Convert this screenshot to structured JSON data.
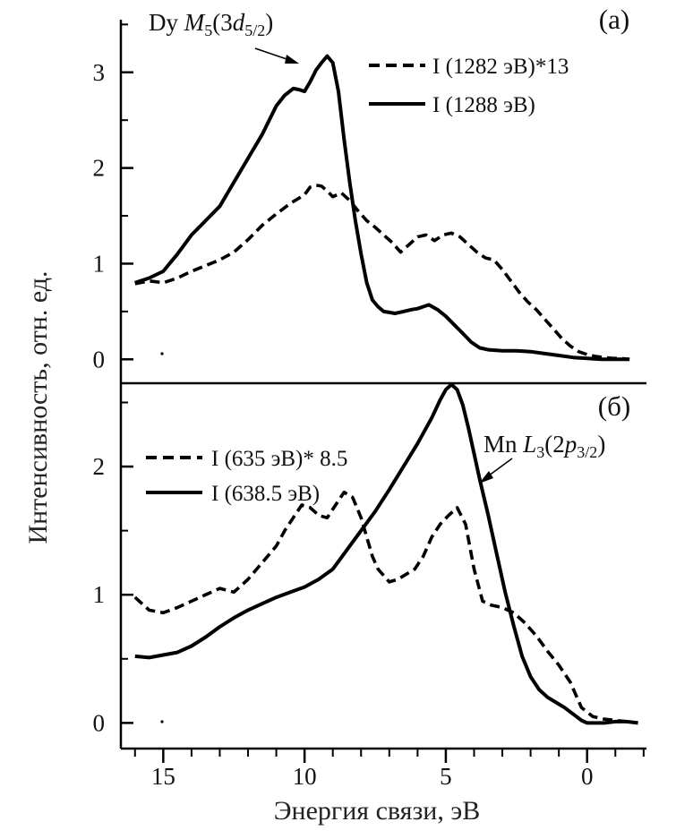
{
  "chart_data": [
    {
      "panel": "a",
      "type": "line",
      "panel_label": "(а)",
      "xlabel": "Энергия связи, эВ",
      "ylabel": "Интенсивность, отн. ед.",
      "xlim": [
        16.5,
        -2.1
      ],
      "ylim": [
        -0.25,
        3.55
      ],
      "yticks": [
        0,
        1,
        2,
        3
      ],
      "ytick_labels": [
        "0",
        "1",
        "2",
        "3"
      ],
      "annotation": {
        "prefix": "Dy ",
        "M": "M",
        "M_sub": "5",
        "open": "(3",
        "d": "d",
        "d_sub": "5/2",
        "close": ")"
      },
      "series": [
        {
          "name": "I (1282 эВ)*13",
          "style": "dashed",
          "x": [
            16.0,
            15.5,
            15.0,
            14.5,
            14.0,
            13.5,
            13.0,
            12.5,
            12.0,
            11.5,
            11.0,
            10.5,
            10.0,
            9.8,
            9.6,
            9.4,
            9.2,
            9.0,
            8.7,
            8.4,
            8.1,
            7.8,
            7.5,
            7.2,
            6.9,
            6.6,
            6.3,
            6.0,
            5.7,
            5.4,
            5.1,
            4.8,
            4.5,
            4.2,
            3.9,
            3.6,
            3.3,
            3.0,
            2.7,
            2.4,
            2.1,
            1.8,
            1.5,
            1.2,
            0.9,
            0.6,
            0.3,
            0.0,
            -0.3,
            -0.6,
            -0.9,
            -1.2,
            -1.5
          ],
          "y": [
            0.79,
            0.82,
            0.8,
            0.85,
            0.92,
            0.98,
            1.04,
            1.12,
            1.25,
            1.4,
            1.52,
            1.63,
            1.72,
            1.8,
            1.82,
            1.81,
            1.76,
            1.7,
            1.74,
            1.66,
            1.55,
            1.45,
            1.38,
            1.3,
            1.22,
            1.12,
            1.2,
            1.28,
            1.3,
            1.24,
            1.3,
            1.32,
            1.28,
            1.2,
            1.12,
            1.06,
            1.04,
            0.94,
            0.82,
            0.7,
            0.6,
            0.52,
            0.42,
            0.32,
            0.22,
            0.14,
            0.08,
            0.05,
            0.03,
            0.02,
            0.01,
            0.01,
            0.0
          ]
        },
        {
          "name": "I (1288 эВ)",
          "style": "solid",
          "x": [
            16.0,
            15.5,
            15.0,
            14.5,
            14.0,
            13.5,
            13.0,
            12.5,
            12.0,
            11.5,
            11.0,
            10.7,
            10.4,
            10.2,
            10.0,
            9.8,
            9.6,
            9.4,
            9.2,
            9.0,
            8.8,
            8.6,
            8.4,
            8.2,
            8.0,
            7.8,
            7.6,
            7.4,
            7.2,
            7.0,
            6.8,
            6.5,
            6.2,
            6.0,
            5.8,
            5.6,
            5.3,
            5.0,
            4.7,
            4.4,
            4.1,
            3.8,
            3.5,
            3.0,
            2.5,
            2.0,
            1.5,
            1.0,
            0.5,
            0.0,
            -0.5,
            -1.0,
            -1.5
          ],
          "y": [
            0.8,
            0.85,
            0.92,
            1.1,
            1.3,
            1.45,
            1.6,
            1.85,
            2.1,
            2.35,
            2.65,
            2.76,
            2.83,
            2.82,
            2.8,
            2.9,
            3.02,
            3.1,
            3.17,
            3.1,
            2.8,
            2.3,
            1.85,
            1.45,
            1.1,
            0.8,
            0.62,
            0.55,
            0.5,
            0.49,
            0.48,
            0.5,
            0.52,
            0.53,
            0.55,
            0.57,
            0.52,
            0.45,
            0.36,
            0.27,
            0.18,
            0.12,
            0.1,
            0.09,
            0.09,
            0.08,
            0.06,
            0.04,
            0.02,
            0.01,
            0.0,
            0.0,
            0.0
          ]
        }
      ]
    },
    {
      "panel": "b",
      "type": "line",
      "panel_label": "(б)",
      "xlabel": "Энергия связи, эВ",
      "ylabel": "Интенсивность, отн. ед.",
      "xlim": [
        16.5,
        -2.1
      ],
      "ylim": [
        -0.2,
        2.65
      ],
      "yticks": [
        0,
        1,
        2
      ],
      "ytick_labels": [
        "0",
        "1",
        "2"
      ],
      "xticks": [
        15,
        10,
        5,
        0
      ],
      "xtick_labels": [
        "15",
        "10",
        "5",
        "0"
      ],
      "annotation": {
        "prefix": "Mn ",
        "L": "L",
        "L_sub": "3",
        "open": "(2",
        "p": "p",
        "p_sub": "3/2",
        "close": ")"
      },
      "series": [
        {
          "name": "I (635 эВ)* 8.5",
          "style": "dashed",
          "x": [
            16.0,
            15.5,
            15.0,
            14.5,
            14.0,
            13.5,
            13.0,
            12.5,
            12.0,
            11.5,
            11.0,
            10.7,
            10.4,
            10.1,
            9.8,
            9.5,
            9.2,
            8.9,
            8.6,
            8.3,
            8.0,
            7.8,
            7.6,
            7.4,
            7.2,
            7.0,
            6.7,
            6.4,
            6.1,
            5.8,
            5.5,
            5.2,
            4.9,
            4.6,
            4.3,
            4.0,
            3.7,
            3.4,
            3.0,
            2.6,
            2.2,
            1.8,
            1.4,
            1.0,
            0.6,
            0.2,
            -0.2,
            -0.6,
            -1.0,
            -1.4,
            -1.8
          ],
          "y": [
            0.98,
            0.88,
            0.86,
            0.9,
            0.95,
            1.0,
            1.05,
            1.02,
            1.12,
            1.25,
            1.38,
            1.5,
            1.6,
            1.7,
            1.68,
            1.62,
            1.6,
            1.7,
            1.8,
            1.76,
            1.6,
            1.45,
            1.3,
            1.2,
            1.15,
            1.1,
            1.12,
            1.16,
            1.2,
            1.3,
            1.45,
            1.55,
            1.62,
            1.68,
            1.55,
            1.2,
            0.95,
            0.92,
            0.9,
            0.86,
            0.78,
            0.68,
            0.56,
            0.45,
            0.32,
            0.12,
            0.05,
            0.03,
            0.02,
            0.01,
            0.0
          ]
        },
        {
          "name": "I (638.5 эВ)",
          "style": "solid",
          "x": [
            16.0,
            15.5,
            15.0,
            14.5,
            14.0,
            13.5,
            13.0,
            12.5,
            12.0,
            11.5,
            11.0,
            10.5,
            10.0,
            9.5,
            9.0,
            8.5,
            8.0,
            7.5,
            7.0,
            6.5,
            6.0,
            5.5,
            5.2,
            5.0,
            4.8,
            4.6,
            4.4,
            4.2,
            4.0,
            3.8,
            3.5,
            3.2,
            2.9,
            2.6,
            2.3,
            2.0,
            1.7,
            1.4,
            1.1,
            0.8,
            0.5,
            0.2,
            0.0,
            -0.3,
            -0.6,
            -1.0,
            -1.4,
            -1.8
          ],
          "y": [
            0.52,
            0.51,
            0.53,
            0.55,
            0.6,
            0.67,
            0.75,
            0.82,
            0.88,
            0.93,
            0.98,
            1.02,
            1.06,
            1.12,
            1.2,
            1.35,
            1.5,
            1.65,
            1.82,
            2.0,
            2.18,
            2.38,
            2.52,
            2.6,
            2.64,
            2.6,
            2.48,
            2.3,
            2.1,
            1.9,
            1.62,
            1.32,
            1.02,
            0.76,
            0.52,
            0.36,
            0.26,
            0.2,
            0.16,
            0.12,
            0.07,
            0.02,
            0.0,
            0.0,
            0.0,
            0.01,
            0.01,
            0.0
          ]
        }
      ]
    }
  ]
}
